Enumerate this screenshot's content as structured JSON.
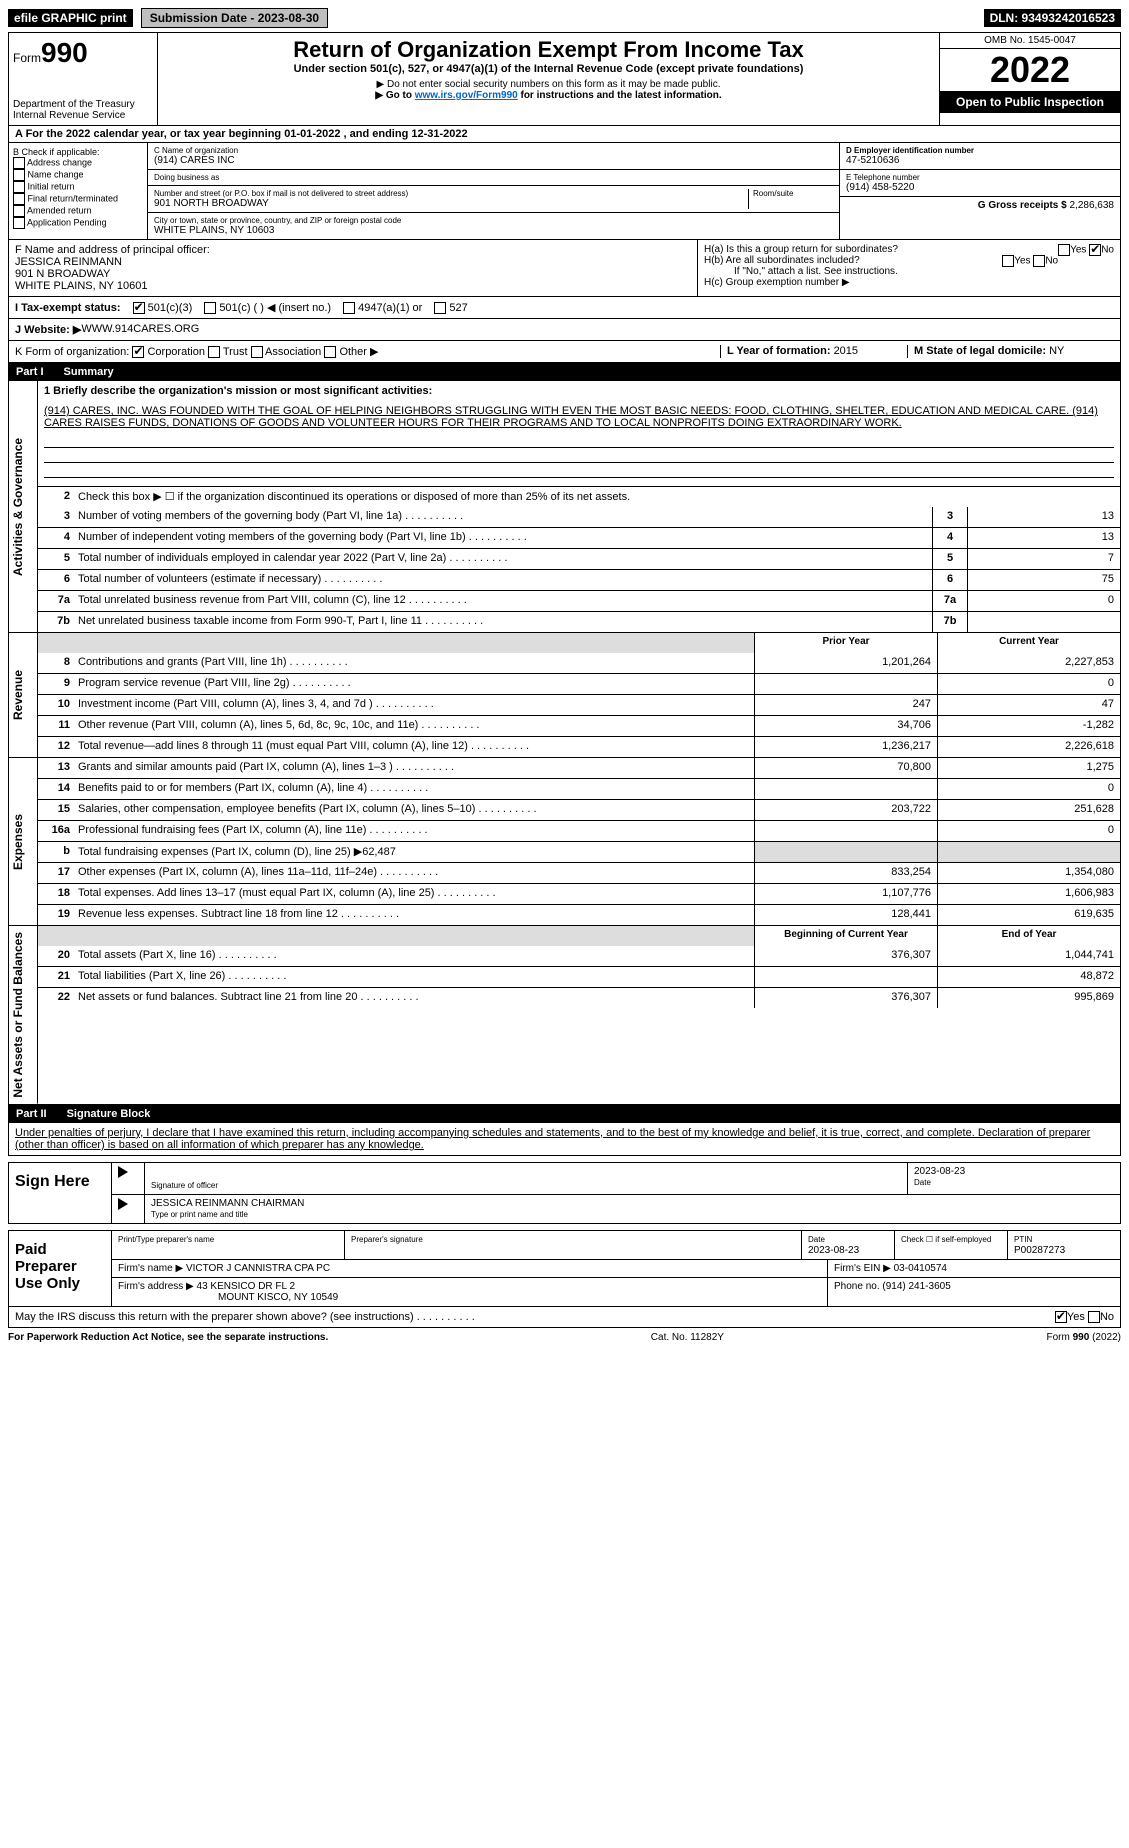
{
  "top": {
    "efile": "efile GRAPHIC print",
    "submission_btn": "Submission Date - 2023-08-30",
    "dln": "DLN: 93493242016523"
  },
  "header": {
    "form_prefix": "Form",
    "form_number": "990",
    "title": "Return of Organization Exempt From Income Tax",
    "subtitle": "Under section 501(c), 527, or 4947(a)(1) of the Internal Revenue Code (except private foundations)",
    "note1": "▶ Do not enter social security numbers on this form as it may be made public.",
    "note2_prefix": "▶ Go to ",
    "note2_link": "www.irs.gov/Form990",
    "note2_suffix": " for instructions and the latest information.",
    "dept": "Department of the Treasury",
    "irs": "Internal Revenue Service",
    "omb": "OMB No. 1545-0047",
    "year": "2022",
    "open": "Open to Public Inspection"
  },
  "row_a": "A For the 2022 calendar year, or tax year beginning 01-01-2022   , and ending 12-31-2022",
  "col_b": {
    "label": "B Check if applicable:",
    "items": [
      "Address change",
      "Name change",
      "Initial return",
      "Final return/terminated",
      "Amended return",
      "Application Pending"
    ]
  },
  "col_c": {
    "name_label": "C Name of organization",
    "name": "(914) CARES INC",
    "dba_label": "Doing business as",
    "dba": "",
    "street_label": "Number and street (or P.O. box if mail is not delivered to street address)",
    "room_label": "Room/suite",
    "street": "901 NORTH BROADWAY",
    "city_label": "City or town, state or province, country, and ZIP or foreign postal code",
    "city": "WHITE PLAINS, NY  10603"
  },
  "col_de": {
    "d_label": "D Employer identification number",
    "ein": "47-5210636",
    "e_label": "E Telephone number",
    "phone": "(914) 458-5220",
    "g_label": "G Gross receipts $ ",
    "g_value": "2,286,638"
  },
  "block_f": {
    "f_label": "F  Name and address of principal officer:",
    "f_name": "JESSICA REINMANN",
    "f_street": "901 N BROADWAY",
    "f_city": "WHITE PLAINS, NY  10601",
    "ha_label": "H(a)  Is this a group return for subordinates?",
    "hb_label": "H(b)  Are all subordinates included?",
    "hb_note": "If \"No,\" attach a list. See instructions.",
    "hc_label": "H(c)  Group exemption number ▶"
  },
  "row_i": {
    "label": "I  Tax-exempt status:",
    "opt1": "501(c)(3)",
    "opt2": "501(c) (    ) ◀ (insert no.)",
    "opt3": "4947(a)(1) or",
    "opt4": "527"
  },
  "row_j": {
    "label": "J  Website: ▶ ",
    "value": "WWW.914CARES.ORG"
  },
  "row_k": {
    "label": "K Form of organization:",
    "opts": [
      "Corporation",
      "Trust",
      "Association",
      "Other ▶"
    ],
    "l_label": "L Year of formation: ",
    "l_value": "2015",
    "m_label": "M State of legal domicile: ",
    "m_value": "NY"
  },
  "part1_header": {
    "part": "Part I",
    "title": "Summary"
  },
  "mission_label": "1  Briefly describe the organization's mission or most significant activities:",
  "mission": "(914) CARES, INC. WAS FOUNDED WITH THE GOAL OF HELPING NEIGHBORS STRUGGLING WITH EVEN THE MOST BASIC NEEDS: FOOD, CLOTHING, SHELTER, EDUCATION AND MEDICAL CARE. (914) CARES RAISES FUNDS, DONATIONS OF GOODS AND VOLUNTEER HOURS FOR THEIR PROGRAMS AND TO LOCAL NONPROFITS DOING EXTRAORDINARY WORK.",
  "line2": "Check this box ▶ ☐ if the organization discontinued its operations or disposed of more than 25% of its net assets.",
  "activities": [
    {
      "n": "3",
      "d": "Number of voting members of the governing body (Part VI, line 1a)",
      "v": "13"
    },
    {
      "n": "4",
      "d": "Number of independent voting members of the governing body (Part VI, line 1b)",
      "v": "13"
    },
    {
      "n": "5",
      "d": "Total number of individuals employed in calendar year 2022 (Part V, line 2a)",
      "v": "7"
    },
    {
      "n": "6",
      "d": "Total number of volunteers (estimate if necessary)",
      "v": "75"
    },
    {
      "n": "7a",
      "d": "Total unrelated business revenue from Part VIII, column (C), line 12",
      "v": "0"
    },
    {
      "n": "7b",
      "d": "Net unrelated business taxable income from Form 990-T, Part I, line 11",
      "v": ""
    }
  ],
  "two_col_headers": {
    "prior": "Prior Year",
    "current": "Current Year"
  },
  "revenue": [
    {
      "n": "8",
      "d": "Contributions and grants (Part VIII, line 1h)",
      "p": "1,201,264",
      "c": "2,227,853"
    },
    {
      "n": "9",
      "d": "Program service revenue (Part VIII, line 2g)",
      "p": "",
      "c": "0"
    },
    {
      "n": "10",
      "d": "Investment income (Part VIII, column (A), lines 3, 4, and 7d )",
      "p": "247",
      "c": "47"
    },
    {
      "n": "11",
      "d": "Other revenue (Part VIII, column (A), lines 5, 6d, 8c, 9c, 10c, and 11e)",
      "p": "34,706",
      "c": "-1,282"
    },
    {
      "n": "12",
      "d": "Total revenue—add lines 8 through 11 (must equal Part VIII, column (A), line 12)",
      "p": "1,236,217",
      "c": "2,226,618"
    }
  ],
  "expenses": [
    {
      "n": "13",
      "d": "Grants and similar amounts paid (Part IX, column (A), lines 1–3 )",
      "p": "70,800",
      "c": "1,275"
    },
    {
      "n": "14",
      "d": "Benefits paid to or for members (Part IX, column (A), line 4)",
      "p": "",
      "c": "0"
    },
    {
      "n": "15",
      "d": "Salaries, other compensation, employee benefits (Part IX, column (A), lines 5–10)",
      "p": "203,722",
      "c": "251,628"
    },
    {
      "n": "16a",
      "d": "Professional fundraising fees (Part IX, column (A), line 11e)",
      "p": "",
      "c": "0"
    },
    {
      "n": "b",
      "d": "Total fundraising expenses (Part IX, column (D), line 25) ▶62,487",
      "p": null,
      "c": null
    },
    {
      "n": "17",
      "d": "Other expenses (Part IX, column (A), lines 11a–11d, 11f–24e)",
      "p": "833,254",
      "c": "1,354,080"
    },
    {
      "n": "18",
      "d": "Total expenses. Add lines 13–17 (must equal Part IX, column (A), line 25)",
      "p": "1,107,776",
      "c": "1,606,983"
    },
    {
      "n": "19",
      "d": "Revenue less expenses. Subtract line 18 from line 12",
      "p": "128,441",
      "c": "619,635"
    }
  ],
  "net_headers": {
    "begin": "Beginning of Current Year",
    "end": "End of Year"
  },
  "net": [
    {
      "n": "20",
      "d": "Total assets (Part X, line 16)",
      "p": "376,307",
      "c": "1,044,741"
    },
    {
      "n": "21",
      "d": "Total liabilities (Part X, line 26)",
      "p": "",
      "c": "48,872"
    },
    {
      "n": "22",
      "d": "Net assets or fund balances. Subtract line 21 from line 20",
      "p": "376,307",
      "c": "995,869"
    }
  ],
  "part2_header": {
    "part": "Part II",
    "title": "Signature Block"
  },
  "declaration": "Under penalties of perjury, I declare that I have examined this return, including accompanying schedules and statements, and to the best of my knowledge and belief, it is true, correct, and complete. Declaration of preparer (other than officer) is based on all information of which preparer has any knowledge.",
  "sign": {
    "left": "Sign Here",
    "sig_label": "Signature of officer",
    "date": "2023-08-23",
    "date_label": "Date",
    "name": "JESSICA REINMANN  CHAIRMAN",
    "name_label": "Type or print name and title"
  },
  "preparer": {
    "left": "Paid Preparer Use Only",
    "h1": "Print/Type preparer's name",
    "h2": "Preparer's signature",
    "h3": "Date",
    "h3v": "2023-08-23",
    "h4": "Check ☐ if self-employed",
    "h5": "PTIN",
    "h5v": "P00287273",
    "firm_label": "Firm's name    ▶ ",
    "firm": "VICTOR J CANNISTRA CPA PC",
    "ein_label": "Firm's EIN ▶ ",
    "ein": "03-0410574",
    "addr_label": "Firm's address ▶ ",
    "addr1": "43 KENSICO DR FL 2",
    "addr2": "MOUNT KISCO, NY  10549",
    "phone_label": "Phone no. ",
    "phone": "(914) 241-3605"
  },
  "discuss": "May the IRS discuss this return with the preparer shown above? (see instructions)",
  "footer": {
    "left": "For Paperwork Reduction Act Notice, see the separate instructions.",
    "mid": "Cat. No. 11282Y",
    "right": "Form 990 (2022)"
  },
  "tabs": {
    "activities": "Activities & Governance",
    "revenue": "Revenue",
    "expenses": "Expenses",
    "net": "Net Assets or Fund Balances"
  }
}
